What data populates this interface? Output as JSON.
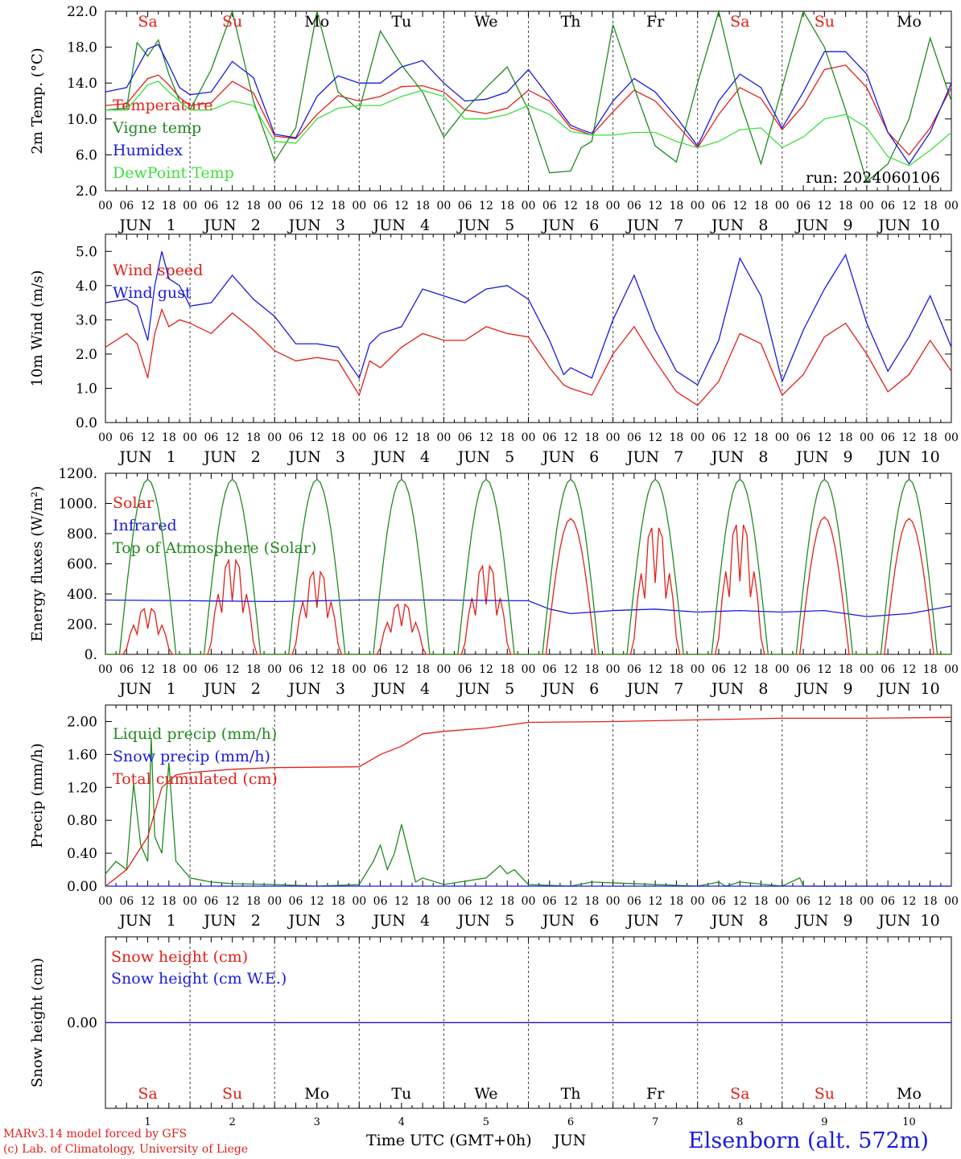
{
  "run_label": "run: 2024060106",
  "footer": {
    "model": "MARv3.14 model forced by GFS",
    "lab": "(c) Lab. of Climatology, University of Liege",
    "xlabel": "Time UTC (GMT+0h)",
    "month": "JUN",
    "station": "Elsenborn (alt. 572m)"
  },
  "days": {
    "names": [
      "Sa",
      "Su",
      "Mo",
      "Tu",
      "We",
      "Th",
      "Fr",
      "Sa",
      "Su",
      "Mo"
    ],
    "colors": [
      "#e0201a",
      "#e0201a",
      "#000000",
      "#000000",
      "#000000",
      "#000000",
      "#000000",
      "#e0201a",
      "#e0201a",
      "#000000"
    ],
    "numbers": [
      "1",
      "2",
      "3",
      "4",
      "5",
      "6",
      "7",
      "8",
      "9",
      "10"
    ],
    "date_labels": [
      "JUN   1",
      "JUN   2",
      "JUN   3",
      "JUN   4",
      "JUN   5",
      "JUN   6",
      "JUN   7",
      "JUN   8",
      "JUN   9",
      "JUN  10"
    ],
    "hour_labels": [
      "00",
      "06",
      "12",
      "18"
    ],
    "end_hour_label": "00"
  },
  "chart_data": [
    {
      "type": "line",
      "ylabel": "2m Temp. (°C)",
      "ylim": [
        2,
        22
      ],
      "yticks": [
        "2.0",
        "6.0",
        "10.0",
        "14.0",
        "18.0",
        "22.0"
      ],
      "x_unit": "hours since Jun 1 00 UTC",
      "series": [
        {
          "name": "Temperature",
          "color": "#e0201a",
          "x": [
            0,
            6,
            12,
            15,
            18,
            21,
            24,
            30,
            36,
            42,
            48,
            54,
            60,
            66,
            72,
            78,
            84,
            90,
            96,
            102,
            108,
            114,
            120,
            126,
            132,
            135,
            138,
            144,
            150,
            156,
            162,
            168,
            174,
            180,
            186,
            192,
            198,
            204,
            210,
            216,
            222,
            228,
            234,
            240
          ],
          "y": [
            11.5,
            11.7,
            14.5,
            14.9,
            13.8,
            12.4,
            11.5,
            11.8,
            14.2,
            12.9,
            8.1,
            7.8,
            10.5,
            12.6,
            12.0,
            12.5,
            13.6,
            13.7,
            13.0,
            11.0,
            10.6,
            11.2,
            13.2,
            12.0,
            9.0,
            8.6,
            8.2,
            10.8,
            13.2,
            12.0,
            9.4,
            6.8,
            10.5,
            13.5,
            12.3,
            8.8,
            11.5,
            15.5,
            16.0,
            13.5,
            8.5,
            6.0,
            9.0,
            13.5
          ]
        },
        {
          "name": "Vigne temp",
          "color": "#1f8a1f",
          "x": [
            0,
            6,
            9,
            12,
            15,
            18,
            21,
            24,
            30,
            36,
            42,
            48,
            54,
            60,
            66,
            72,
            78,
            84,
            90,
            96,
            102,
            108,
            114,
            120,
            126,
            132,
            135,
            138,
            144,
            150,
            156,
            162,
            168,
            174,
            180,
            186,
            192,
            198,
            204,
            210,
            216,
            222,
            228,
            234,
            240
          ],
          "y": [
            11.0,
            11.2,
            18.5,
            17.0,
            18.8,
            15.0,
            12.0,
            11.0,
            15.5,
            22.0,
            12.0,
            5.3,
            9.0,
            22.0,
            13.0,
            11.0,
            19.8,
            16.0,
            13.0,
            8.0,
            11.0,
            13.5,
            15.8,
            11.0,
            4.0,
            4.2,
            6.8,
            7.5,
            20.5,
            13.5,
            7.0,
            5.2,
            14.0,
            22.0,
            12.0,
            5.0,
            13.5,
            22.0,
            18.0,
            11.0,
            3.0,
            5.0,
            10.0,
            19.0,
            12.0
          ]
        },
        {
          "name": "Humidex",
          "color": "#1a1adc",
          "x": [
            0,
            6,
            12,
            15,
            18,
            21,
            24,
            30,
            36,
            42,
            48,
            54,
            60,
            66,
            72,
            78,
            84,
            90,
            96,
            102,
            108,
            114,
            120,
            126,
            132,
            135,
            138,
            144,
            150,
            156,
            162,
            168,
            174,
            180,
            186,
            192,
            198,
            204,
            210,
            216,
            222,
            228,
            234,
            240
          ],
          "y": [
            13.0,
            13.5,
            17.8,
            18.3,
            16.0,
            13.5,
            12.7,
            13.0,
            16.4,
            14.6,
            8.3,
            7.9,
            12.5,
            14.8,
            14.0,
            14.0,
            15.8,
            16.5,
            14.0,
            12.0,
            12.2,
            13.0,
            15.5,
            12.4,
            9.3,
            8.8,
            8.4,
            12.0,
            14.5,
            13.0,
            10.2,
            7.0,
            12.0,
            15.0,
            13.5,
            9.0,
            13.0,
            17.5,
            17.5,
            15.0,
            8.5,
            5.0,
            8.5,
            14.0
          ]
        },
        {
          "name": "DewPoint Temp",
          "color": "#3de03d",
          "x": [
            0,
            6,
            12,
            15,
            18,
            21,
            24,
            30,
            36,
            42,
            48,
            54,
            60,
            66,
            72,
            78,
            84,
            90,
            96,
            102,
            108,
            114,
            120,
            126,
            132,
            135,
            138,
            144,
            150,
            156,
            162,
            168,
            174,
            180,
            186,
            192,
            198,
            204,
            210,
            216,
            222,
            228,
            234,
            240
          ],
          "y": [
            11.0,
            11.0,
            13.8,
            14.2,
            13.0,
            12.0,
            11.0,
            11.0,
            12.0,
            11.5,
            7.5,
            7.3,
            10.0,
            11.2,
            11.5,
            11.5,
            12.5,
            13.2,
            12.5,
            10.0,
            10.0,
            10.5,
            11.5,
            10.5,
            8.6,
            8.4,
            8.2,
            8.2,
            8.5,
            8.5,
            7.5,
            6.8,
            7.5,
            8.8,
            9.0,
            6.8,
            8.0,
            10.0,
            10.5,
            9.0,
            5.8,
            4.8,
            6.5,
            8.5
          ]
        }
      ]
    },
    {
      "type": "line",
      "ylabel": "10m Wind (m/s)",
      "ylim": [
        0,
        5.5
      ],
      "yticks": [
        "0.0",
        "1.0",
        "2.0",
        "3.0",
        "4.0",
        "5.0"
      ],
      "series": [
        {
          "name": "Wind speed",
          "color": "#e0201a",
          "x": [
            0,
            6,
            9,
            12,
            14,
            16,
            18,
            21,
            24,
            30,
            36,
            42,
            48,
            54,
            60,
            66,
            72,
            75,
            78,
            84,
            90,
            96,
            102,
            108,
            114,
            120,
            126,
            130,
            132,
            138,
            144,
            150,
            156,
            162,
            168,
            174,
            180,
            186,
            192,
            198,
            204,
            210,
            216,
            222,
            228,
            234,
            240
          ],
          "y": [
            2.2,
            2.6,
            2.3,
            1.3,
            2.6,
            3.3,
            2.8,
            3.0,
            2.9,
            2.6,
            3.2,
            2.7,
            2.1,
            1.8,
            1.9,
            1.8,
            0.8,
            1.8,
            1.6,
            2.2,
            2.6,
            2.4,
            2.4,
            2.8,
            2.6,
            2.5,
            1.6,
            1.1,
            1.0,
            0.8,
            2.0,
            2.8,
            1.8,
            0.9,
            0.5,
            1.2,
            2.6,
            2.3,
            0.8,
            1.4,
            2.5,
            2.9,
            2.0,
            0.9,
            1.4,
            2.4,
            1.5
          ]
        },
        {
          "name": "Wind gust",
          "color": "#1a1adc",
          "x": [
            0,
            6,
            9,
            12,
            14,
            16,
            18,
            21,
            24,
            30,
            36,
            42,
            48,
            54,
            60,
            66,
            72,
            75,
            78,
            84,
            90,
            96,
            102,
            108,
            114,
            120,
            126,
            130,
            132,
            138,
            144,
            150,
            156,
            162,
            168,
            174,
            180,
            186,
            192,
            198,
            204,
            210,
            216,
            222,
            228,
            234,
            240
          ],
          "y": [
            3.5,
            3.6,
            3.4,
            2.4,
            4.0,
            5.0,
            4.2,
            4.0,
            3.4,
            3.5,
            4.3,
            3.6,
            3.1,
            2.3,
            2.3,
            2.2,
            1.3,
            2.3,
            2.6,
            2.8,
            3.9,
            3.7,
            3.5,
            3.9,
            4.0,
            3.6,
            2.4,
            1.4,
            1.6,
            1.3,
            3.0,
            4.3,
            2.7,
            1.5,
            1.1,
            2.4,
            4.8,
            3.7,
            1.2,
            2.7,
            3.9,
            4.9,
            2.9,
            1.5,
            2.5,
            3.7,
            2.2
          ]
        }
      ]
    },
    {
      "type": "line",
      "ylabel": "Energy fluxes (W/m²)",
      "ylim": [
        0,
        1200
      ],
      "yticks": [
        "0.",
        "200.",
        "400.",
        "600.",
        "800.",
        "1000.",
        "1200."
      ],
      "series": [
        {
          "name": "Solar",
          "color": "#e0201a",
          "peaks": [
            310,
            640,
            560,
            340,
            600,
            900,
            860,
            880,
            910,
            900
          ]
        },
        {
          "name": "Infrared",
          "color": "#1a1adc",
          "x": [
            0,
            24,
            48,
            72,
            96,
            120,
            126,
            132,
            144,
            156,
            168,
            180,
            192,
            204,
            216,
            228,
            240
          ],
          "y": [
            360,
            355,
            350,
            360,
            360,
            355,
            300,
            270,
            290,
            300,
            280,
            290,
            280,
            290,
            250,
            270,
            320
          ]
        },
        {
          "name": "Top of Atmosphere (Solar)",
          "color": "#1f8a1f",
          "peak": 1160,
          "sunrise_h": 4,
          "sunset_h": 20
        }
      ]
    },
    {
      "type": "line",
      "ylabel": "Precip (mm/h)",
      "ylim": [
        0,
        2.2
      ],
      "yticks": [
        "0.00",
        "0.40",
        "0.80",
        "1.20",
        "1.60",
        "2.00"
      ],
      "series": [
        {
          "name": "Liquid precip (mm/h)",
          "color": "#1f8a1f",
          "x": [
            0,
            3,
            6,
            8,
            10,
            12,
            13,
            14,
            16,
            18,
            20,
            24,
            30,
            36,
            48,
            60,
            72,
            76,
            78,
            80,
            82,
            84,
            88,
            90,
            96,
            108,
            112,
            114,
            116,
            120,
            132,
            138,
            168,
            174,
            176,
            180,
            192,
            197,
            198,
            204,
            240
          ],
          "y": [
            0.15,
            0.3,
            0.2,
            1.25,
            0.5,
            0.3,
            1.8,
            0.6,
            0.4,
            1.5,
            0.3,
            0.1,
            0.05,
            0.03,
            0.02,
            0.0,
            0.02,
            0.3,
            0.5,
            0.2,
            0.4,
            0.75,
            0.05,
            0.1,
            0.02,
            0.1,
            0.25,
            0.15,
            0.2,
            0.02,
            0.0,
            0.05,
            0.0,
            0.05,
            0.0,
            0.05,
            0.0,
            0.1,
            0.0,
            0.0,
            0.0
          ]
        },
        {
          "name": "Snow precip (mm/h)",
          "color": "#1a1adc",
          "x": [
            0,
            240
          ],
          "y": [
            0,
            0
          ]
        },
        {
          "name": "Total cumulated (cm)",
          "color": "#e0201a",
          "x": [
            0,
            6,
            12,
            16,
            20,
            24,
            36,
            48,
            72,
            78,
            84,
            90,
            96,
            108,
            120,
            144,
            168,
            192,
            216,
            240
          ],
          "y": [
            0.0,
            0.2,
            0.6,
            1.2,
            1.35,
            1.38,
            1.42,
            1.44,
            1.45,
            1.6,
            1.7,
            1.85,
            1.88,
            1.92,
            1.99,
            2.0,
            2.02,
            2.04,
            2.04,
            2.05
          ]
        }
      ]
    },
    {
      "type": "line",
      "ylabel": "Snow height (cm)",
      "ylim": [
        -1,
        1
      ],
      "yticks": [
        "0.00"
      ],
      "series": [
        {
          "name": "Snow height (cm)",
          "color": "#e0201a",
          "x": [
            0,
            240
          ],
          "y": [
            0,
            0
          ]
        },
        {
          "name": "Snow height (cm W.E.)",
          "color": "#1a1adc",
          "x": [
            0,
            240
          ],
          "y": [
            0,
            0
          ]
        }
      ]
    }
  ]
}
